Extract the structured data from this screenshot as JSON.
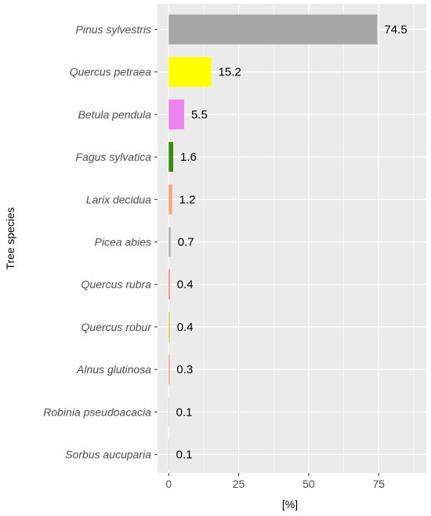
{
  "chart_data": {
    "type": "bar",
    "orientation": "horizontal",
    "categories": [
      "Pinus sylvestris",
      "Quercus petraea",
      "Betula pendula",
      "Fagus sylvatica",
      "Larix decidua",
      "Picea abies",
      "Quercus rubra",
      "Quercus robur",
      "Alnus glutinosa",
      "Robinia pseudoacacia",
      "Sorbus aucuparia"
    ],
    "values": [
      74.5,
      15.2,
      5.5,
      1.6,
      1.2,
      0.7,
      0.4,
      0.4,
      0.3,
      0.1,
      0.1
    ],
    "data_labels": [
      "74.5",
      "15.2",
      "5.5",
      "1.6",
      "1.2",
      "0.7",
      "0.4",
      "0.4",
      "0.3",
      "0.1",
      "0.1"
    ],
    "colors": [
      "#a6a6a6",
      "#ffff00",
      "#ee82ee",
      "#3a8a10",
      "#ffa07a",
      "#b0b0b0",
      "#ef7070",
      "#cdcd3a",
      "#fa8072",
      "#c0c0c0",
      "#c0c0c0"
    ],
    "xlabel": "[%]",
    "ylabel": "Tree species",
    "xticks": [
      "0",
      "25",
      "50",
      "75"
    ],
    "xtick_values": [
      0,
      25,
      50,
      75
    ],
    "xlim": [
      -4,
      92
    ],
    "grid": true,
    "panel_background": "#ebebeb",
    "grid_color": "#ffffff"
  }
}
